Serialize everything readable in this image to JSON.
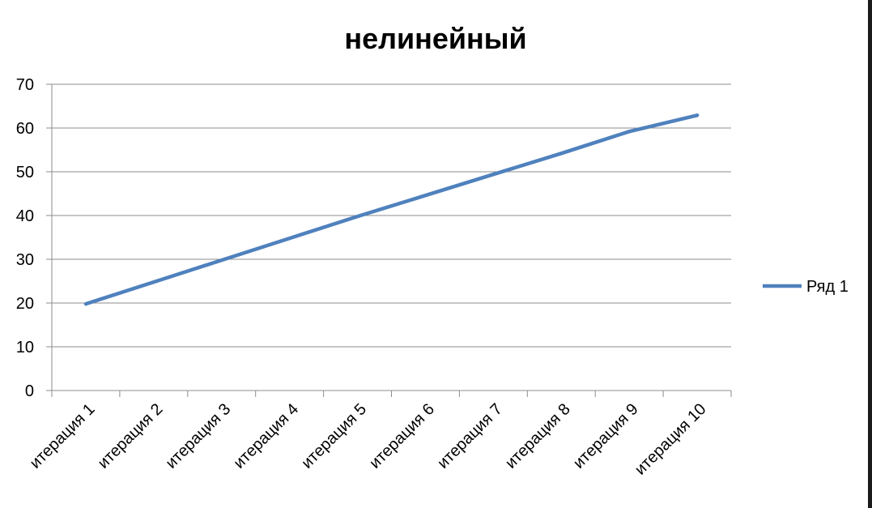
{
  "chart_data": {
    "type": "line",
    "title": "нелинейный",
    "categories": [
      "итерация 1",
      "итерация 2",
      "итерация 3",
      "итерация 4",
      "итерация 5",
      "итерация 6",
      "итерация 7",
      "итерация 8",
      "итерация 9",
      "итерация 10"
    ],
    "series": [
      {
        "name": "Ряд 1",
        "values": [
          19.8,
          24.8,
          29.8,
          34.8,
          39.8,
          44.6,
          49.4,
          54.2,
          59.2,
          62.9
        ],
        "color": "#4f81bd"
      }
    ],
    "ylim": [
      0,
      70
    ],
    "yticks": [
      0,
      10,
      20,
      30,
      40,
      50,
      60,
      70
    ],
    "ytick_labels": [
      "0",
      "10",
      "20",
      "30",
      "40",
      "50",
      "60",
      "70"
    ],
    "grid": true,
    "legend_position": "right"
  }
}
